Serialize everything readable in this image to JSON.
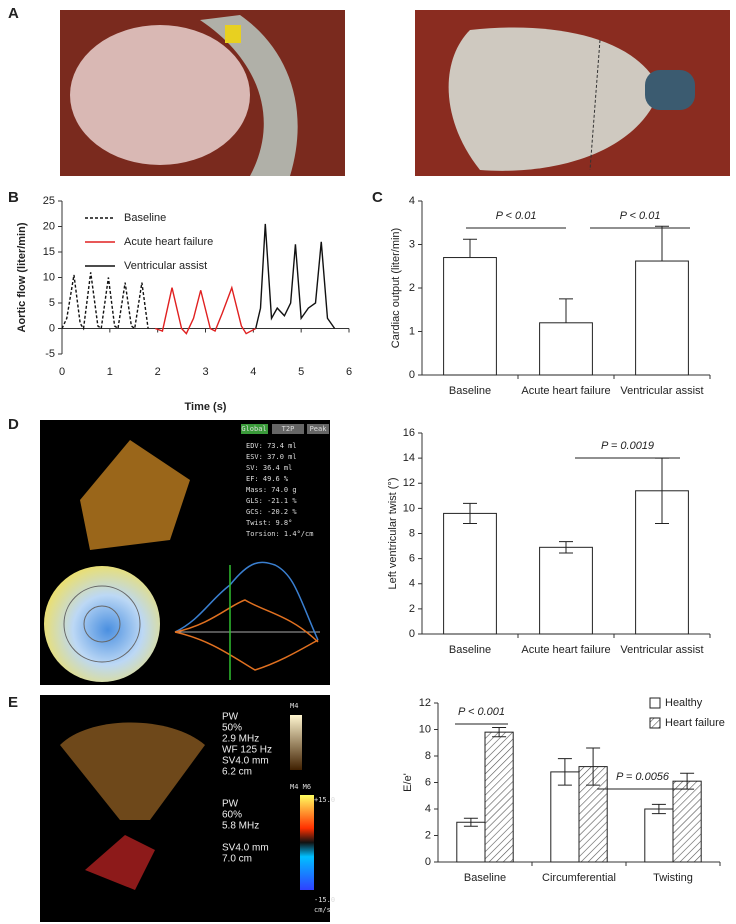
{
  "panel_labels": [
    "A",
    "B",
    "C",
    "D",
    "E"
  ],
  "echo_d": {
    "tabs": [
      "Global",
      "T2P",
      "Peak"
    ],
    "measurements": [
      "EDV: 73.4 ml",
      "ESV: 37.0 ml",
      "SV: 36.4 ml",
      "EF: 49.6 %",
      "Mass: 74.0 g",
      "GLS: -21.1 %",
      "GCS: -20.2 %",
      "Twist: 9.8°",
      "Torsion: 1.4°/cm"
    ]
  },
  "echo_e": {
    "top": [
      "PW",
      "50%",
      "2.9 MHz",
      "WF 125 Hz",
      "SV4.0 mm",
      "6.2 cm"
    ],
    "top_tag": "M4",
    "bottom": [
      "PW",
      "60%",
      "5.8 MHz",
      "",
      "SV4.0 mm",
      "7.0 cm"
    ],
    "bottom_tag": "M4 M6",
    "scale": [
      "+15.0",
      "-15.0",
      "cm/s"
    ]
  },
  "chart_data": [
    {
      "type": "line",
      "xlabel": "Time (s)",
      "ylabel": "Aortic flow (liter/min)",
      "xlim": [
        0,
        6
      ],
      "ylim": [
        -5,
        25
      ],
      "xticks": [
        0,
        1,
        2,
        3,
        4,
        5,
        6
      ],
      "yticks": [
        -5,
        0,
        5,
        10,
        15,
        20,
        25
      ],
      "series": [
        {
          "name": "Baseline",
          "color": "#111111",
          "style": "dashed",
          "x": [
            0,
            0.1,
            0.25,
            0.38,
            0.45,
            0.6,
            0.75,
            0.82,
            0.97,
            1.1,
            1.17,
            1.32,
            1.45,
            1.52,
            1.67,
            1.8
          ],
          "values": [
            0,
            2,
            10.5,
            1,
            0,
            11,
            0.5,
            0,
            10,
            0.5,
            0,
            9,
            0.5,
            0,
            9,
            0
          ]
        },
        {
          "name": "Acute heart failure",
          "color": "#e02020",
          "style": "solid",
          "x": [
            1.95,
            2.1,
            2.3,
            2.5,
            2.6,
            2.75,
            2.9,
            3.1,
            3.2,
            3.35,
            3.55,
            3.75,
            3.85,
            4.05
          ],
          "values": [
            0,
            -0.5,
            8,
            0,
            -1,
            2,
            7.5,
            0,
            -0.5,
            3,
            8,
            0.5,
            -1,
            0
          ]
        },
        {
          "name": "Ventricular assist",
          "color": "#111111",
          "style": "solid",
          "x": [
            4.05,
            4.15,
            4.25,
            4.38,
            4.5,
            4.65,
            4.78,
            4.88,
            5.0,
            5.15,
            5.3,
            5.42,
            5.55,
            5.7
          ],
          "values": [
            0,
            4,
            20.5,
            2,
            4,
            2.5,
            5,
            16.5,
            2,
            4,
            5,
            17,
            2,
            0
          ]
        }
      ]
    },
    {
      "type": "bar",
      "ylabel": "Cardiac output (liter/min)",
      "ylim": [
        0,
        4
      ],
      "yticks": [
        0,
        1,
        2,
        3,
        4
      ],
      "categories": [
        "Baseline",
        "Acute heart failure",
        "Ventricular assist"
      ],
      "values": [
        2.7,
        1.2,
        2.62
      ],
      "errors": [
        0.42,
        0.55,
        0.8
      ],
      "error_bars": "up",
      "color": "#ffffff",
      "annotations": [
        "P < 0.01",
        "P < 0.01"
      ]
    },
    {
      "type": "bar",
      "ylabel": "Left ventricular twist (°)",
      "ylim": [
        0,
        16
      ],
      "yticks": [
        0,
        2,
        4,
        6,
        8,
        10,
        12,
        14,
        16
      ],
      "categories": [
        "Baseline",
        "Acute heart failure",
        "Ventricular assist"
      ],
      "values": [
        9.6,
        6.9,
        11.4
      ],
      "errors": [
        0.8,
        0.45,
        2.6
      ],
      "error_bars": "both",
      "color": "#ffffff",
      "annotations": [
        "P = 0.0019"
      ]
    },
    {
      "type": "grouped_bar",
      "ylabel": "E/e'",
      "ylim": [
        0,
        12
      ],
      "yticks": [
        0,
        2,
        4,
        6,
        8,
        10,
        12
      ],
      "categories": [
        "Baseline",
        "Circumferential",
        "Twisting"
      ],
      "error_bars": "both",
      "series": [
        {
          "name": "Healthy",
          "color": "#ffffff",
          "hatch": false,
          "values": [
            3.0,
            6.8,
            4.0
          ],
          "errors": [
            0.3,
            1.0,
            0.35
          ]
        },
        {
          "name": "Heart failure",
          "color": "#ffffff",
          "hatch": true,
          "values": [
            9.8,
            7.2,
            6.1
          ],
          "errors": [
            0.35,
            1.4,
            0.6
          ]
        }
      ],
      "annotations": [
        "P < 0.001",
        "P = 0.0056"
      ]
    }
  ]
}
